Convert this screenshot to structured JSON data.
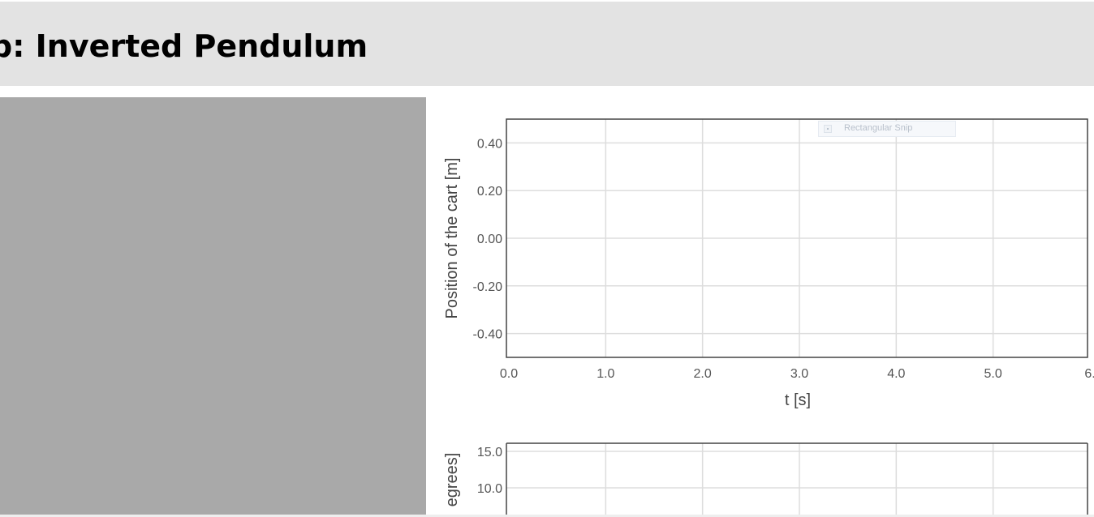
{
  "page": {
    "title": "b: Inverted Pendulum"
  },
  "snip_overlay": {
    "label": "Rectangular Snip"
  },
  "chart_data": [
    {
      "type": "line",
      "title": "",
      "xlabel": "t [s]",
      "ylabel": "Position of the cart [m]",
      "xlim": [
        0,
        6
      ],
      "ylim": [
        -0.5,
        0.5
      ],
      "x_ticks": [
        "0.0",
        "1.0",
        "2.0",
        "3.0",
        "4.0",
        "5.0",
        "6."
      ],
      "y_ticks": [
        "0.40",
        "0.20",
        "0.00",
        "-0.20",
        "-0.40"
      ],
      "series": [],
      "grid": true
    },
    {
      "type": "line",
      "title": "",
      "ylabel": "egrees]",
      "y_ticks": [
        "15.0",
        "10.0"
      ],
      "series": [],
      "grid": true
    }
  ],
  "colors": {
    "header_bg": "#e3e3e3",
    "canvas_bg": "#a9a9a9",
    "grid": "#dddddd",
    "axis": "#444444"
  }
}
